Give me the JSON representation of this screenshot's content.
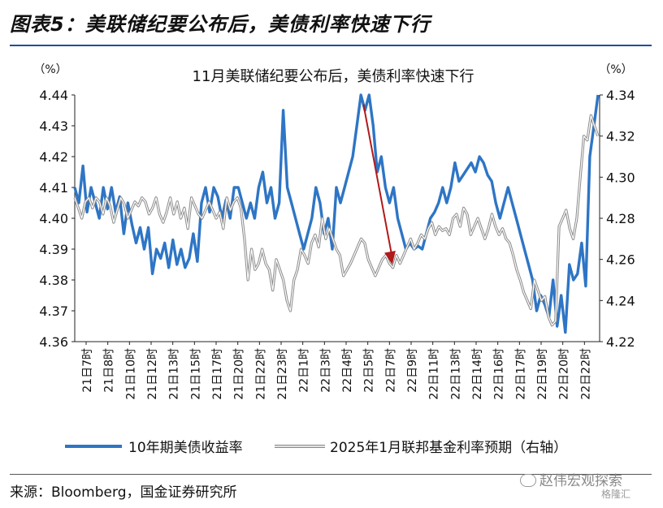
{
  "figure": {
    "title": "图表5：美联储纪要公布后，美债利率快速下行",
    "source": "来源：Bloomberg，国金证券研究所",
    "watermark": "赵伟宏观探索",
    "watermark_small": "格隆汇"
  },
  "chart_data": {
    "type": "line",
    "title": "11月美联储纪要公布后，美债利率快速下行",
    "left_axis": {
      "unit_label": "（%）",
      "ylim": [
        4.36,
        4.44
      ],
      "ticks": [
        "4.36",
        "4.37",
        "4.38",
        "4.39",
        "4.40",
        "4.41",
        "4.42",
        "4.43",
        "4.44"
      ]
    },
    "right_axis": {
      "unit_label": "（%）",
      "ylim": [
        4.22,
        4.34
      ],
      "ticks": [
        "4.22",
        "4.24",
        "4.26",
        "4.28",
        "4.30",
        "4.32",
        "4.34"
      ]
    },
    "x_ticks": [
      "21日7时",
      "21日8时",
      "21日10时",
      "21日12时",
      "21日13时",
      "21日15时",
      "21日17时",
      "21日20时",
      "21日22时",
      "21日23时",
      "22日1时",
      "22日3时",
      "22日4时",
      "22日5时",
      "22日7时",
      "22日9时",
      "22日11时",
      "22日13时",
      "22日14时",
      "22日16时",
      "22日17时",
      "22日19时",
      "22日20时",
      "22日22时"
    ],
    "series": [
      {
        "name": "10年期美债收益率",
        "axis": "left",
        "color": "#2e75c5",
        "values": [
          4.41,
          4.405,
          4.417,
          4.402,
          4.41,
          4.405,
          4.4,
          4.41,
          4.403,
          4.41,
          4.402,
          4.407,
          4.395,
          4.405,
          4.398,
          4.392,
          4.397,
          4.39,
          4.397,
          4.382,
          4.39,
          4.387,
          4.392,
          4.384,
          4.393,
          4.385,
          4.39,
          4.384,
          4.387,
          4.395,
          4.386,
          4.405,
          4.41,
          4.402,
          4.41,
          4.407,
          4.4,
          4.406,
          4.4,
          4.41,
          4.41,
          4.405,
          4.4,
          4.405,
          4.4,
          4.41,
          4.415,
          4.405,
          4.41,
          4.4,
          4.405,
          4.435,
          4.41,
          4.405,
          4.4,
          4.395,
          4.39,
          4.395,
          4.4,
          4.41,
          4.405,
          4.395,
          4.4,
          4.39,
          4.41,
          4.405,
          4.41,
          4.415,
          4.42,
          4.43,
          4.44,
          4.435,
          4.44,
          4.43,
          4.415,
          4.42,
          4.41,
          4.405,
          4.41,
          4.4,
          4.395,
          4.39,
          4.392,
          4.39,
          4.391,
          4.39,
          4.395,
          4.4,
          4.402,
          4.405,
          4.41,
          4.405,
          4.41,
          4.418,
          4.412,
          4.414,
          4.416,
          4.418,
          4.415,
          4.42,
          4.418,
          4.414,
          4.412,
          4.405,
          4.4,
          4.405,
          4.41,
          4.405,
          4.4,
          4.395,
          4.39,
          4.385,
          4.38,
          4.37,
          4.375,
          4.372,
          4.368,
          4.38,
          4.365,
          4.375,
          4.363,
          4.385,
          4.38,
          4.382,
          4.392,
          4.378,
          4.42,
          4.43,
          4.44
        ]
      },
      {
        "name": "2025年1月联邦基金利率预期（右轴）",
        "axis": "right",
        "color": "#8a8a8a",
        "values": [
          4.29,
          4.285,
          4.28,
          4.288,
          4.29,
          4.285,
          4.29,
          4.288,
          4.282,
          4.29,
          4.286,
          4.278,
          4.284,
          4.29,
          4.287,
          4.28,
          4.284,
          4.288,
          4.286,
          4.29,
          4.288,
          4.282,
          4.285,
          4.29,
          4.282,
          4.278,
          4.283,
          4.29,
          4.282,
          4.288,
          4.28,
          4.285,
          4.275,
          4.29,
          4.286,
          4.282,
          4.28,
          4.284,
          4.288,
          4.284,
          4.28,
          4.283,
          4.275,
          4.29,
          4.284,
          4.288,
          4.29,
          4.285,
          4.27,
          4.25,
          4.265,
          4.255,
          4.258,
          4.265,
          4.258,
          4.255,
          4.245,
          4.26,
          4.255,
          4.25,
          4.24,
          4.235,
          4.25,
          4.255,
          4.265,
          4.262,
          4.258,
          4.268,
          4.272,
          4.266,
          4.28,
          4.27,
          4.275,
          4.27,
          4.265,
          4.262,
          4.252,
          4.255,
          4.258,
          4.262,
          4.266,
          4.27,
          4.268,
          4.26,
          4.256,
          4.252,
          4.256,
          4.26,
          4.262,
          4.258,
          4.256,
          4.262,
          4.258,
          4.262,
          4.266,
          4.27,
          4.265,
          4.268,
          4.272,
          4.27,
          4.275,
          4.278,
          4.272,
          4.276,
          4.274,
          4.275,
          4.272,
          4.28,
          4.282,
          4.276,
          4.285,
          4.282,
          4.272,
          4.276,
          4.28,
          4.275,
          4.27,
          4.275,
          4.282,
          4.276,
          4.272,
          4.275,
          4.27,
          4.268,
          4.262,
          4.255,
          4.25,
          4.244,
          4.24,
          4.236,
          4.25,
          4.245,
          4.24,
          4.242,
          4.232,
          4.228,
          4.23,
          4.276,
          4.28,
          4.284,
          4.275,
          4.27,
          4.28,
          4.3,
          4.32,
          4.318,
          4.33,
          4.325,
          4.32
        ]
      }
    ],
    "annotation": {
      "type": "arrow",
      "color": "#b01a1a",
      "from_x_frac": 0.55,
      "from_y": 4.437,
      "to_x_frac": 0.605,
      "to_y": 4.385
    },
    "legend": {
      "placement": "bottom"
    },
    "grid": false
  }
}
